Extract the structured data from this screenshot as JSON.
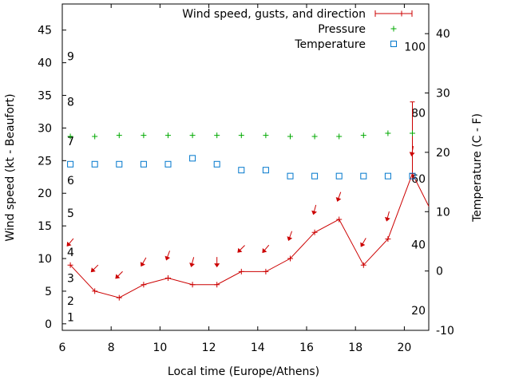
{
  "chart_data": {
    "type": "line",
    "xlabel": "Local time (Europe/Athens)",
    "ylabel_left": "Wind speed (kt - Beaufort)",
    "ylabel_right": "Temperature (C - F)",
    "xlim": [
      6,
      21
    ],
    "ylim_left": [
      -1,
      49
    ],
    "ylim_right": [
      -10,
      45
    ],
    "pressure_scale": {
      "y1": 28.2,
      "y2": 28.5
    },
    "x_ticks": [
      "6",
      "8",
      "10",
      "12",
      "14",
      "16",
      "18",
      "20"
    ],
    "x_tick_values": [
      6,
      8,
      10,
      12,
      14,
      16,
      18,
      20
    ],
    "left_ticks": [
      "0",
      "5",
      "10",
      "15",
      "20",
      "25",
      "30",
      "35",
      "40",
      "45"
    ],
    "left_tick_values": [
      0,
      5,
      10,
      15,
      20,
      25,
      30,
      35,
      40,
      45
    ],
    "right_ticks": [
      "-10",
      "0",
      "10",
      "20",
      "30",
      "40"
    ],
    "right_tick_values": [
      -10,
      0,
      10,
      20,
      30,
      40
    ],
    "beaufort_labels": [
      "1",
      "2",
      "3",
      "4",
      "5",
      "6",
      "7",
      "8",
      "9"
    ],
    "beaufort_values": [
      1,
      3.5,
      7,
      11,
      17,
      22,
      28,
      34,
      41
    ],
    "fahrenheit_labels": [
      "20",
      "40",
      "60",
      "80",
      "100"
    ],
    "fahrenheit_values": [
      20,
      40,
      60,
      80,
      100
    ],
    "grid": false,
    "legend_position": "top-right",
    "series": [
      {
        "name": "Wind speed, gusts, and direction",
        "color": "#cc0000",
        "x": [
          6.33,
          7.33,
          8.33,
          9.33,
          10.33,
          11.33,
          12.33,
          13.33,
          14.33,
          15.33,
          16.33,
          17.33,
          18.33,
          19.33,
          20.33,
          21.0
        ],
        "y": [
          9,
          5,
          4,
          6,
          7,
          6,
          6,
          8,
          8,
          10,
          14,
          16,
          9,
          13,
          23,
          18
        ],
        "gust_x": 20.33,
        "gust_range": [
          22,
          34
        ],
        "direction_deg": [
          40,
          45,
          45,
          30,
          20,
          15,
          0,
          45,
          40,
          20,
          15,
          20,
          30,
          15,
          10
        ]
      },
      {
        "name": "Pressure",
        "color": "#00aa00",
        "x": [
          6.33,
          7.33,
          8.33,
          9.33,
          10.33,
          11.33,
          12.33,
          13.33,
          14.33,
          15.33,
          16.33,
          17.33,
          18.33,
          19.33,
          20.33
        ],
        "y": [
          28.2,
          28.2,
          28.3,
          28.3,
          28.3,
          28.3,
          28.3,
          28.3,
          28.3,
          28.2,
          28.2,
          28.2,
          28.3,
          28.5,
          28.5
        ]
      },
      {
        "name": "Temperature",
        "color": "#0077cc",
        "x": [
          6.33,
          7.33,
          8.33,
          9.33,
          10.33,
          11.33,
          12.33,
          13.33,
          14.33,
          15.33,
          16.33,
          17.33,
          18.33,
          19.33,
          20.33
        ],
        "y": [
          18,
          18,
          18,
          18,
          18,
          19,
          18,
          17,
          17,
          16,
          16,
          16,
          16,
          16,
          16
        ]
      }
    ]
  }
}
